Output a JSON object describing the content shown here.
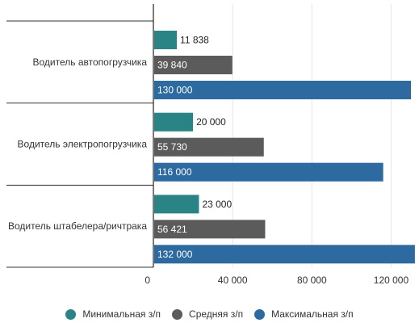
{
  "chart_data": {
    "type": "bar",
    "orientation": "horizontal",
    "categories": [
      "Водитель автопогрузчика",
      "Водитель электропогрузчика",
      "Водитель штабелера/ричтрака"
    ],
    "series": [
      {
        "name": "Минимальная з/п",
        "color": "#2a8385",
        "values": [
          11838,
          20000,
          23000
        ],
        "labels": [
          "11 838",
          "20 000",
          "23 000"
        ]
      },
      {
        "name": "Средняя з/п",
        "color": "#5b5b5b",
        "values": [
          39840,
          55730,
          56421
        ],
        "labels": [
          "39 840",
          "55 730",
          "56 421"
        ]
      },
      {
        "name": "Максимальная з/п",
        "color": "#2c6aa0",
        "values": [
          130000,
          116000,
          132000
        ],
        "labels": [
          "130 000",
          "116 000",
          "132 000"
        ]
      }
    ],
    "xlim": [
      0,
      130000
    ],
    "xticks": [
      0,
      40000,
      80000,
      120000
    ],
    "xtick_labels": [
      "0",
      "40 000",
      "80 000",
      "120 000"
    ],
    "grid": true,
    "legend_position": "bottom"
  }
}
